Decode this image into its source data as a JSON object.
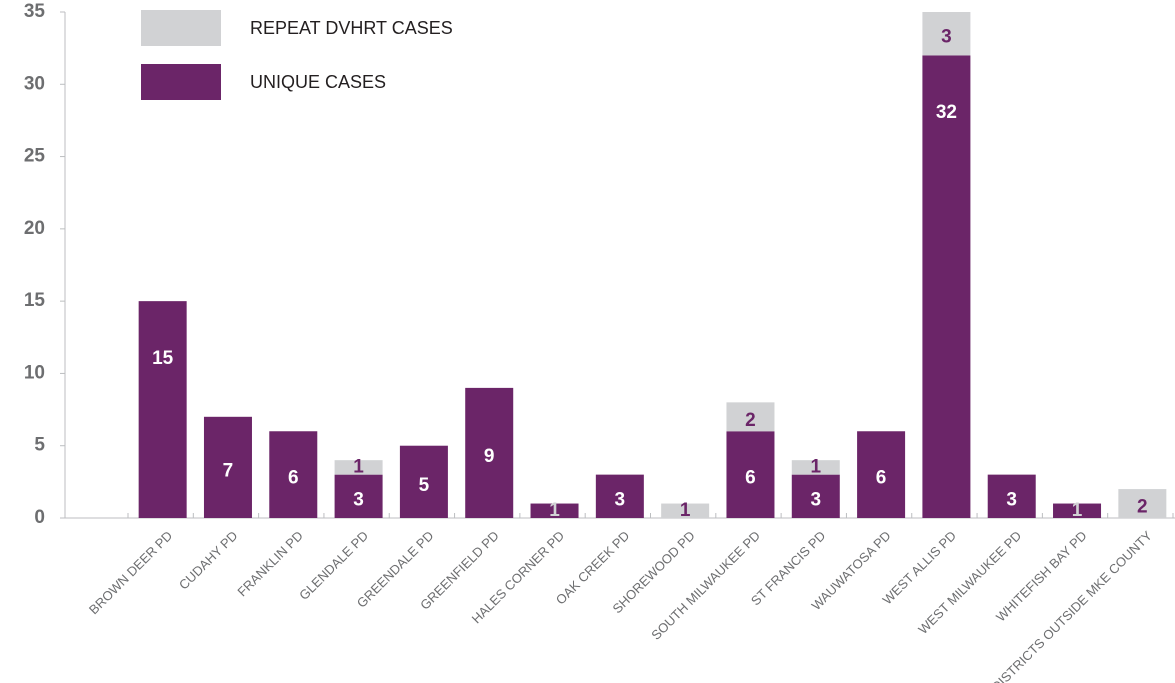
{
  "chart_data": {
    "type": "bar",
    "stacked": true,
    "categories": [
      "BROWN DEER PD",
      "CUDAHY PD",
      "FRANKLIN PD",
      "GLENDALE PD",
      "GREENDALE PD",
      "GREENFIELD PD",
      "HALES CORNER PD",
      "OAK CREEK PD",
      "SHOREWOOD PD",
      "SOUTH MILWAUKEE PD",
      "ST FRANCIS PD",
      "WAUWATOSA PD",
      "WEST ALLIS PD",
      "WEST MILWAUKEE PD",
      "WHITEFISH BAY PD",
      "DISTRICTS OUTSIDE MKE COUNTY"
    ],
    "series": [
      {
        "name": "UNIQUE CASES",
        "color": "#6b2568",
        "values": [
          15,
          7,
          6,
          3,
          5,
          9,
          1,
          3,
          0,
          6,
          3,
          6,
          32,
          3,
          1,
          0
        ]
      },
      {
        "name": "REPEAT DVHRT CASES",
        "color": "#d1d2d4",
        "values": [
          0,
          0,
          0,
          1,
          0,
          0,
          0,
          0,
          1,
          2,
          1,
          0,
          3,
          0,
          0,
          2
        ]
      }
    ],
    "ylim": [
      0,
      35
    ],
    "yticks": [
      0,
      5,
      10,
      15,
      20,
      25,
      30,
      35
    ],
    "grid": false,
    "legend": "top-left"
  }
}
